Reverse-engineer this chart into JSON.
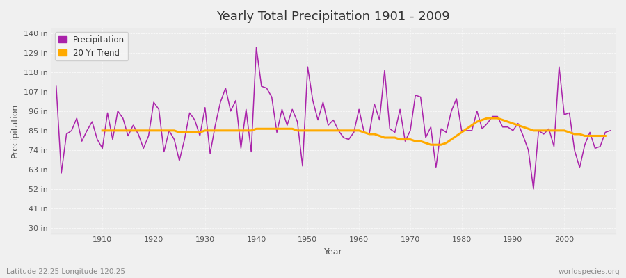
{
  "title": "Yearly Total Precipitation 1901 - 2009",
  "xlabel": "Year",
  "ylabel": "Precipitation",
  "x_label_bottom_left": "Latitude 22.25 Longitude 120.25",
  "x_label_bottom_right": "worldspecies.org",
  "years": [
    1901,
    1902,
    1903,
    1904,
    1905,
    1906,
    1907,
    1908,
    1909,
    1910,
    1911,
    1912,
    1913,
    1914,
    1915,
    1916,
    1917,
    1918,
    1919,
    1920,
    1921,
    1922,
    1923,
    1924,
    1925,
    1926,
    1927,
    1928,
    1929,
    1930,
    1931,
    1932,
    1933,
    1934,
    1935,
    1936,
    1937,
    1938,
    1939,
    1940,
    1941,
    1942,
    1943,
    1944,
    1945,
    1946,
    1947,
    1948,
    1949,
    1950,
    1951,
    1952,
    1953,
    1954,
    1955,
    1956,
    1957,
    1958,
    1959,
    1960,
    1961,
    1962,
    1963,
    1964,
    1965,
    1966,
    1967,
    1968,
    1969,
    1970,
    1971,
    1972,
    1973,
    1974,
    1975,
    1976,
    1977,
    1978,
    1979,
    1980,
    1981,
    1982,
    1983,
    1984,
    1985,
    1986,
    1987,
    1988,
    1989,
    1990,
    1991,
    1992,
    1993,
    1994,
    1995,
    1996,
    1997,
    1998,
    1999,
    2000,
    2001,
    2002,
    2003,
    2004,
    2005,
    2006,
    2007,
    2008,
    2009
  ],
  "precip": [
    110,
    61,
    83,
    85,
    92,
    79,
    85,
    90,
    80,
    75,
    95,
    80,
    96,
    92,
    82,
    88,
    83,
    75,
    82,
    101,
    97,
    73,
    85,
    80,
    68,
    80,
    95,
    91,
    82,
    98,
    72,
    88,
    101,
    109,
    96,
    102,
    75,
    97,
    73,
    132,
    110,
    109,
    104,
    84,
    97,
    88,
    97,
    90,
    65,
    121,
    102,
    91,
    101,
    88,
    91,
    85,
    81,
    80,
    84,
    97,
    84,
    83,
    100,
    91,
    119,
    86,
    84,
    97,
    79,
    85,
    105,
    104,
    81,
    87,
    64,
    86,
    84,
    96,
    103,
    85,
    85,
    85,
    96,
    86,
    89,
    93,
    93,
    87,
    87,
    85,
    89,
    82,
    74,
    52,
    85,
    83,
    86,
    76,
    121,
    94,
    95,
    74,
    64,
    77,
    84,
    75,
    76,
    84,
    85
  ],
  "trend": [
    null,
    null,
    null,
    null,
    null,
    null,
    null,
    null,
    null,
    85,
    85,
    85,
    85,
    85,
    85,
    85,
    85,
    85,
    85,
    85,
    85,
    85,
    85,
    85,
    84,
    84,
    84,
    84,
    84,
    85,
    85,
    85,
    85,
    85,
    85,
    85,
    85,
    85,
    85,
    86,
    86,
    86,
    86,
    86,
    86,
    86,
    86,
    85,
    85,
    85,
    85,
    85,
    85,
    85,
    85,
    85,
    85,
    85,
    85,
    85,
    84,
    83,
    83,
    82,
    81,
    81,
    81,
    80,
    80,
    80,
    79,
    79,
    78,
    77,
    77,
    77,
    78,
    80,
    82,
    84,
    86,
    88,
    90,
    91,
    92,
    92,
    92,
    91,
    90,
    89,
    88,
    87,
    86,
    85,
    85,
    85,
    85,
    85,
    85,
    85,
    84,
    83,
    83,
    82,
    82,
    82,
    82,
    82,
    null
  ],
  "precip_color": "#aa22aa",
  "trend_color": "#ffaa00",
  "bg_color": "#f0f0f0",
  "plot_bg_color": "#ebebeb",
  "grid_color": "#ffffff",
  "yticks": [
    30,
    41,
    52,
    63,
    74,
    85,
    96,
    107,
    118,
    129,
    140
  ],
  "ytick_labels": [
    "30 in",
    "41 in",
    "52 in",
    "63 in",
    "74 in",
    "85 in",
    "96 in",
    "107 in",
    "118 in",
    "129 in",
    "140 in"
  ],
  "ylim": [
    27,
    143
  ],
  "xlim": [
    1900,
    2010
  ],
  "xticks": [
    1910,
    1920,
    1930,
    1940,
    1950,
    1960,
    1970,
    1980,
    1990,
    2000
  ]
}
